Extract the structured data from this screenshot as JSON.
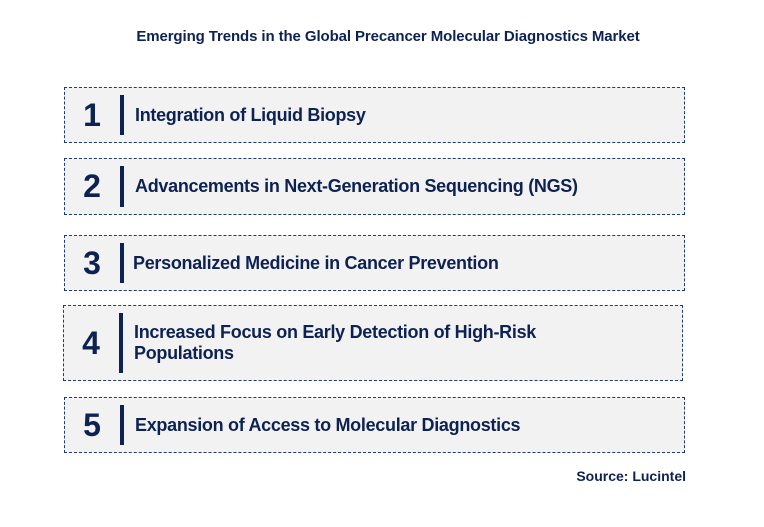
{
  "title": "Emerging Trends in the Global Precancer Molecular Diagnostics Market",
  "trends": [
    {
      "number": "1",
      "label": "Integration of Liquid Biopsy"
    },
    {
      "number": "2",
      "label": "Advancements in Next-Generation Sequencing (NGS)"
    },
    {
      "number": "3",
      "label": "Personalized Medicine in Cancer Prevention"
    },
    {
      "number": "4",
      "label": "Increased Focus on Early Detection of High-Risk Populations"
    },
    {
      "number": "5",
      "label": "Expansion of Access to Molecular Diagnostics"
    }
  ],
  "source": "Source: Lucintel",
  "colors": {
    "text": "#0d2152",
    "box_background": "#f2f2f2",
    "box_border": "#1f3b73"
  }
}
